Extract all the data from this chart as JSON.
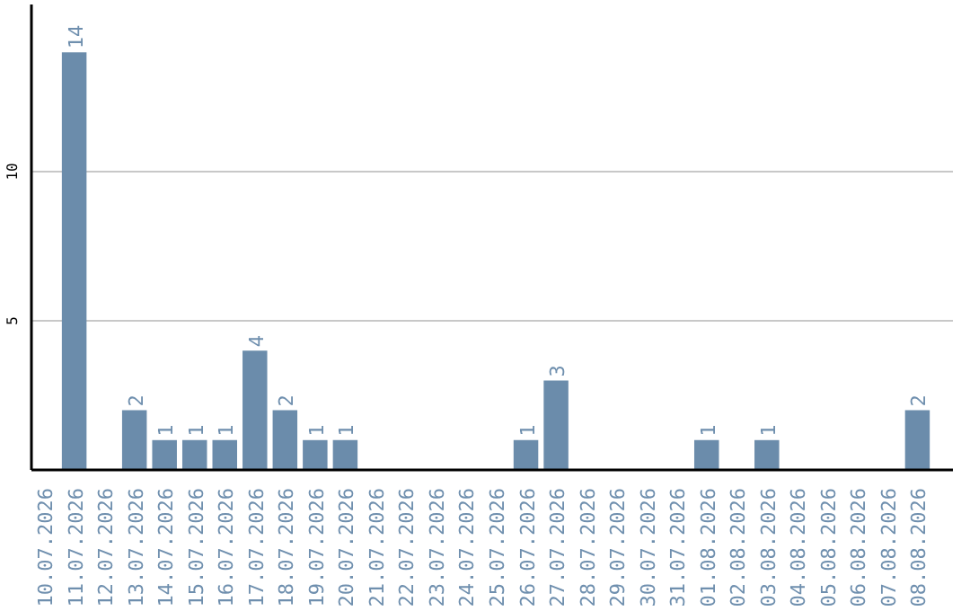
{
  "chart_data": {
    "type": "bar",
    "categories": [
      "10.07.2026",
      "11.07.2026",
      "12.07.2026",
      "13.07.2026",
      "14.07.2026",
      "15.07.2026",
      "16.07.2026",
      "17.07.2026",
      "18.07.2026",
      "19.07.2026",
      "20.07.2026",
      "21.07.2026",
      "22.07.2026",
      "23.07.2026",
      "24.07.2026",
      "25.07.2026",
      "26.07.2026",
      "27.07.2026",
      "28.07.2026",
      "29.07.2026",
      "30.07.2026",
      "31.07.2026",
      "01.08.2026",
      "02.08.2026",
      "03.08.2026",
      "04.08.2026",
      "05.08.2026",
      "06.08.2026",
      "07.08.2026",
      "08.08.2026"
    ],
    "values": [
      0,
      14,
      0,
      2,
      1,
      1,
      1,
      4,
      2,
      1,
      1,
      0,
      0,
      0,
      0,
      0,
      1,
      3,
      0,
      0,
      0,
      0,
      1,
      0,
      1,
      0,
      0,
      0,
      0,
      2
    ],
    "value_labels": [
      null,
      "14",
      null,
      "2",
      "1",
      "1",
      "1",
      "4",
      "2",
      "1",
      "1",
      null,
      null,
      null,
      null,
      null,
      "1",
      "3",
      null,
      null,
      null,
      null,
      "1",
      null,
      "1",
      null,
      null,
      null,
      null,
      "2"
    ],
    "color": "#6b8cab",
    "ylim": [
      0,
      15.6
    ],
    "yticks": [
      5,
      10
    ],
    "grid": "y"
  }
}
